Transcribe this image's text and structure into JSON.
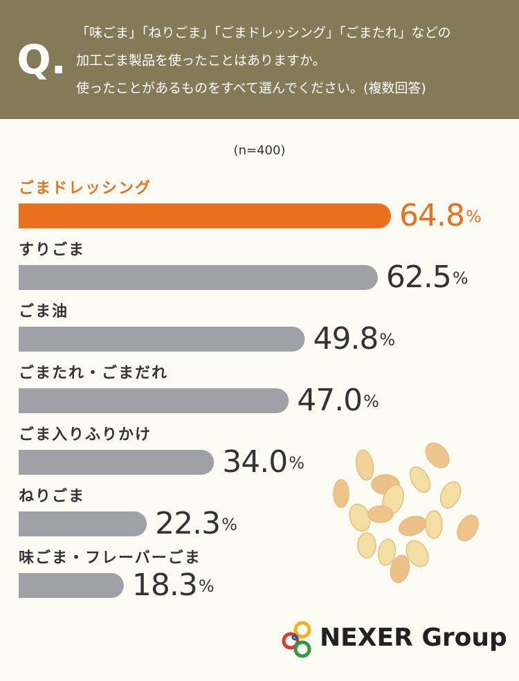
{
  "chart_data": {
    "type": "bar",
    "question_mark": "Q.",
    "question_lines": [
      "「味ごま」「ねりごま」「ごまドレッシング」「ごまたれ」などの",
      "加工ごま製品を使ったことはありますか。",
      "使ったことがあるものをすべて選んでください。(複数回答)"
    ],
    "sample_size": "(n=400)",
    "categories": [
      "ごまドレッシング",
      "すりごま",
      "ごま油",
      "ごまたれ・ごまだれ",
      "ごま入りふりかけ",
      "ねりごま",
      "味ごま・フレーバーごま"
    ],
    "values": [
      64.8,
      62.5,
      49.8,
      47.0,
      34.0,
      22.3,
      18.3
    ],
    "value_labels": [
      "64.8",
      "62.5",
      "49.8",
      "47.0",
      "34.0",
      "22.3",
      "18.3"
    ],
    "unit": "%",
    "colors": [
      "#e8701f",
      "#a0a1a6",
      "#a0a1a6",
      "#a0a1a6",
      "#a0a1a6",
      "#a0a1a6",
      "#a0a1a6"
    ],
    "logo": "NEXER Group"
  }
}
